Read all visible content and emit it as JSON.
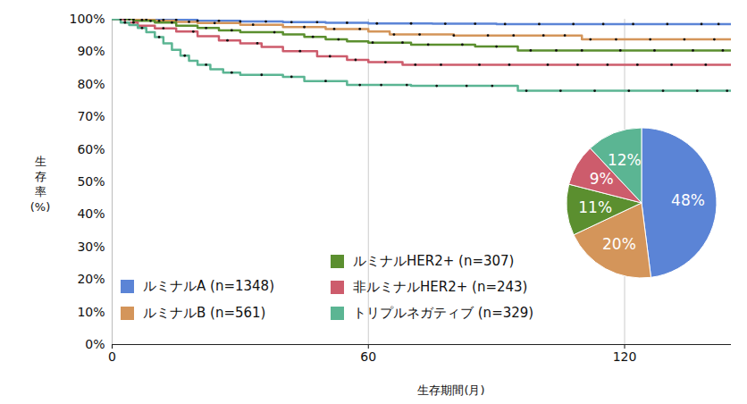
{
  "chart_data": [
    {
      "type": "line",
      "x_label": "生存期間(月)",
      "y_label": "生存率(%)",
      "xlim": [
        0,
        145
      ],
      "xticks": [
        0,
        60,
        120
      ],
      "ylim": [
        0,
        100
      ],
      "yticks": [
        {
          "value": 0,
          "label": "0%"
        },
        {
          "value": 10,
          "label": "10%"
        },
        {
          "value": 20,
          "label": "20%"
        },
        {
          "value": 30,
          "label": "30%"
        },
        {
          "value": 40,
          "label": "40%"
        },
        {
          "value": 50,
          "label": "50%"
        },
        {
          "value": 60,
          "label": "60%"
        },
        {
          "value": 70,
          "label": "70%"
        },
        {
          "value": 80,
          "label": "80%"
        },
        {
          "value": 90,
          "label": "90%"
        },
        {
          "value": 100,
          "label": "100%"
        }
      ],
      "grid": "x",
      "legend": "bottom",
      "line_style": "step",
      "series": [
        {
          "name": "ルミナルA (n=1348)",
          "color": "#5b84d6",
          "x": [
            0,
            5,
            10,
            20,
            30,
            40,
            50,
            60,
            75,
            90,
            145
          ],
          "values": [
            100,
            99.9,
            99.8,
            99.5,
            99.3,
            99.1,
            98.9,
            98.7,
            98.6,
            98.5,
            98.5
          ],
          "censored": [
            2,
            5,
            8,
            12,
            15,
            20,
            25,
            30,
            36,
            42,
            48,
            55,
            62,
            70,
            78,
            85,
            92,
            100,
            108,
            115,
            122,
            130,
            138,
            142
          ]
        },
        {
          "name": "ルミナルB (n=561)",
          "color": "#d4955a",
          "x": [
            0,
            5,
            10,
            15,
            20,
            30,
            40,
            50,
            60,
            65,
            80,
            110,
            145
          ],
          "values": [
            100,
            99.8,
            99.5,
            99.2,
            98.8,
            98.3,
            97.6,
            97.0,
            96.2,
            95.3,
            95.0,
            93.8,
            93.8
          ],
          "censored": [
            3,
            7,
            11,
            18,
            24,
            33,
            45,
            52,
            58,
            66,
            72,
            80,
            88,
            94,
            101,
            106,
            112,
            118,
            126,
            134,
            141
          ]
        },
        {
          "name": "ルミナルHER2+ (n=307)",
          "color": "#5b8f2f",
          "x": [
            0,
            5,
            10,
            15,
            20,
            25,
            30,
            40,
            45,
            50,
            55,
            60,
            70,
            85,
            95,
            145
          ],
          "values": [
            100,
            99.5,
            99,
            98,
            97.3,
            96.6,
            96,
            95.3,
            94.6,
            93.8,
            93.2,
            92.8,
            92.2,
            91.6,
            90.4,
            90.4
          ],
          "censored": [
            4,
            9,
            14,
            22,
            28,
            38,
            47,
            53,
            61,
            68,
            74,
            82,
            90,
            98,
            104,
            110,
            119,
            127,
            136,
            143
          ]
        },
        {
          "name": "非ルミナルHER2+ (n=243)",
          "color": "#cd5c6c",
          "x": [
            0,
            3,
            6,
            10,
            15,
            20,
            25,
            30,
            35,
            40,
            48,
            55,
            60,
            68,
            145
          ],
          "values": [
            100,
            99,
            98,
            97.2,
            96.2,
            94.8,
            93.5,
            92.6,
            91.5,
            90.2,
            88.6,
            87.5,
            86.8,
            86,
            86
          ],
          "censored": [
            5,
            12,
            19,
            27,
            34,
            44,
            51,
            57,
            64,
            71,
            77,
            86,
            93,
            102,
            109,
            116,
            123,
            131,
            139
          ]
        },
        {
          "name": "トリプルネガティブ (n=329)",
          "color": "#5bb593",
          "x": [
            0,
            2,
            4,
            6,
            8,
            10,
            12,
            14,
            16,
            18,
            20,
            23,
            26,
            30,
            40,
            45,
            55,
            70,
            95,
            145
          ],
          "values": [
            100,
            99,
            98.2,
            97.3,
            96,
            94.5,
            92.6,
            90.6,
            88.8,
            87.2,
            86,
            84.6,
            83.6,
            82.9,
            82.3,
            81,
            79.8,
            79.5,
            78,
            78
          ],
          "censored": [
            3,
            7,
            11,
            17,
            22,
            28,
            35,
            42,
            50,
            58,
            63,
            69,
            76,
            83,
            89,
            97,
            105,
            113,
            121,
            129,
            137,
            144
          ]
        }
      ]
    },
    {
      "type": "pie",
      "values": [
        48,
        20,
        11,
        9,
        12
      ],
      "colors": [
        "#5b84d6",
        "#d4955a",
        "#5b8f2f",
        "#cd5c6c",
        "#5bb593"
      ],
      "value_labels": [
        "48%",
        "20%",
        "11%",
        "9%",
        "12%"
      ],
      "data_labels": true
    }
  ]
}
